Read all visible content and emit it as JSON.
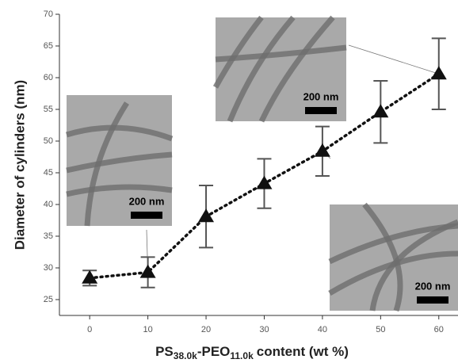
{
  "chart_data": {
    "type": "line",
    "xlabel": [
      "PS",
      "38.0k",
      "-PEO",
      "11.0k",
      "content (wt %)"
    ],
    "ylabel": "Diameter of cylinders (nm)",
    "x": [
      0,
      10,
      20,
      30,
      40,
      50,
      60
    ],
    "values": [
      28.4,
      29.3,
      38.1,
      43.3,
      48.4,
      54.6,
      60.6
    ],
    "errors": [
      1.2,
      2.4,
      4.9,
      3.9,
      3.9,
      4.9,
      5.6
    ],
    "color": "#111111",
    "xlim": [
      -5.2,
      63.3
    ],
    "xticks": [
      0,
      10,
      20,
      30,
      40,
      50,
      60
    ],
    "ylim": [
      22.5,
      70
    ],
    "yticks": [
      25,
      30,
      35,
      40,
      45,
      50,
      55,
      60,
      65,
      70
    ],
    "insets": [
      {
        "scale_label": "200 nm"
      },
      {
        "scale_label": "200 nm"
      },
      {
        "scale_label": "200 nm"
      }
    ]
  }
}
